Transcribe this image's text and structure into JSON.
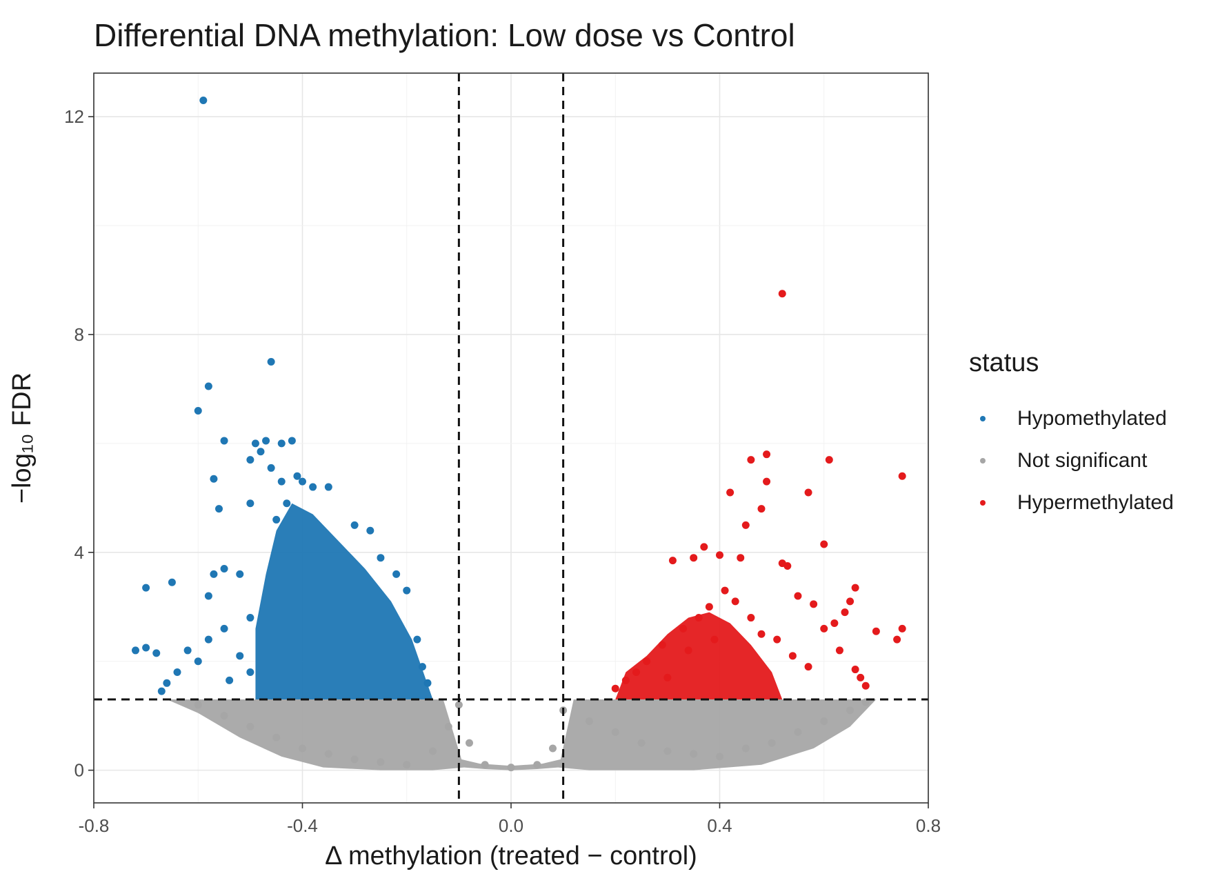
{
  "chart_data": {
    "type": "scatter",
    "title": "Differential DNA methylation: Low dose vs Control",
    "xlabel": "Δ methylation (treated − control)",
    "ylabel": "−log₁₀ FDR",
    "xlim": [
      -0.8,
      0.8
    ],
    "ylim": [
      -0.6,
      12.8
    ],
    "x_ticks": [
      -0.8,
      -0.4,
      0.0,
      0.4,
      0.8
    ],
    "x_tick_labels": [
      "-0.8",
      "-0.4",
      "0.0",
      "0.4",
      "0.8"
    ],
    "y_ticks": [
      0,
      4,
      8,
      12
    ],
    "y_tick_labels": [
      "0",
      "4",
      "8",
      "12"
    ],
    "grid": true,
    "thresholds": {
      "delta_methylation": [
        -0.1,
        0.1
      ],
      "neg_log10_fdr": 1.3
    },
    "legend": {
      "title": "status",
      "placement": "right",
      "entries": [
        {
          "label": "Hypomethylated",
          "color": "#1f77b4"
        },
        {
          "label": "Not significant",
          "color": "#a6a6a6"
        },
        {
          "label": "Hypermethylated",
          "color": "#e41a1c"
        }
      ]
    },
    "series": [
      {
        "name": "Hypomethylated",
        "color": "#1f77b4",
        "points": [
          [
            -0.59,
            12.3
          ],
          [
            -0.46,
            7.5
          ],
          [
            -0.58,
            7.05
          ],
          [
            -0.6,
            6.6
          ],
          [
            -0.55,
            6.05
          ],
          [
            -0.49,
            6.0
          ],
          [
            -0.47,
            6.05
          ],
          [
            -0.44,
            6.0
          ],
          [
            -0.42,
            6.05
          ],
          [
            -0.5,
            5.7
          ],
          [
            -0.48,
            5.85
          ],
          [
            -0.46,
            5.55
          ],
          [
            -0.57,
            5.35
          ],
          [
            -0.44,
            5.3
          ],
          [
            -0.41,
            5.4
          ],
          [
            -0.4,
            5.3
          ],
          [
            -0.38,
            5.2
          ],
          [
            -0.35,
            5.2
          ],
          [
            -0.56,
            4.8
          ],
          [
            -0.5,
            4.9
          ],
          [
            -0.45,
            4.6
          ],
          [
            -0.43,
            4.9
          ],
          [
            -0.3,
            4.5
          ],
          [
            -0.27,
            4.4
          ],
          [
            -0.55,
            3.7
          ],
          [
            -0.57,
            3.6
          ],
          [
            -0.65,
            3.45
          ],
          [
            -0.7,
            3.35
          ],
          [
            -0.58,
            3.2
          ],
          [
            -0.52,
            3.6
          ],
          [
            -0.25,
            3.9
          ],
          [
            -0.22,
            3.6
          ],
          [
            -0.2,
            3.3
          ],
          [
            -0.5,
            2.8
          ],
          [
            -0.55,
            2.6
          ],
          [
            -0.58,
            2.4
          ],
          [
            -0.62,
            2.2
          ],
          [
            -0.72,
            2.2
          ],
          [
            -0.7,
            2.25
          ],
          [
            -0.68,
            2.15
          ],
          [
            -0.6,
            2.0
          ],
          [
            -0.64,
            1.8
          ],
          [
            -0.66,
            1.6
          ],
          [
            -0.67,
            1.45
          ],
          [
            -0.52,
            2.1
          ],
          [
            -0.5,
            1.8
          ],
          [
            -0.54,
            1.65
          ],
          [
            -0.18,
            2.4
          ],
          [
            -0.17,
            1.9
          ],
          [
            -0.16,
            1.6
          ]
        ]
      },
      {
        "name": "Hypermethylated",
        "color": "#e41a1c",
        "points": [
          [
            0.52,
            8.75
          ],
          [
            0.75,
            5.4
          ],
          [
            0.61,
            5.7
          ],
          [
            0.49,
            5.8
          ],
          [
            0.46,
            5.7
          ],
          [
            0.49,
            5.3
          ],
          [
            0.42,
            5.1
          ],
          [
            0.57,
            5.1
          ],
          [
            0.48,
            4.8
          ],
          [
            0.45,
            4.5
          ],
          [
            0.6,
            4.15
          ],
          [
            0.37,
            4.1
          ],
          [
            0.35,
            3.9
          ],
          [
            0.31,
            3.85
          ],
          [
            0.4,
            3.95
          ],
          [
            0.44,
            3.9
          ],
          [
            0.52,
            3.8
          ],
          [
            0.53,
            3.75
          ],
          [
            0.55,
            3.2
          ],
          [
            0.58,
            3.05
          ],
          [
            0.66,
            3.35
          ],
          [
            0.65,
            3.1
          ],
          [
            0.64,
            2.9
          ],
          [
            0.62,
            2.7
          ],
          [
            0.6,
            2.6
          ],
          [
            0.75,
            2.6
          ],
          [
            0.7,
            2.55
          ],
          [
            0.74,
            2.4
          ],
          [
            0.46,
            2.8
          ],
          [
            0.48,
            2.5
          ],
          [
            0.51,
            2.4
          ],
          [
            0.54,
            2.1
          ],
          [
            0.57,
            1.9
          ],
          [
            0.63,
            2.2
          ],
          [
            0.66,
            1.85
          ],
          [
            0.67,
            1.7
          ],
          [
            0.68,
            1.55
          ],
          [
            0.24,
            1.8
          ],
          [
            0.22,
            1.65
          ],
          [
            0.2,
            1.5
          ],
          [
            0.26,
            2.0
          ],
          [
            0.29,
            2.3
          ],
          [
            0.33,
            2.6
          ],
          [
            0.38,
            3.0
          ],
          [
            0.41,
            3.3
          ],
          [
            0.43,
            3.1
          ],
          [
            0.36,
            2.8
          ],
          [
            0.39,
            2.4
          ],
          [
            0.34,
            2.2
          ],
          [
            0.3,
            1.7
          ]
        ]
      },
      {
        "name": "Not significant",
        "color": "#a6a6a6",
        "points": [
          [
            -0.6,
            1.2
          ],
          [
            -0.55,
            1.0
          ],
          [
            -0.5,
            0.8
          ],
          [
            -0.45,
            0.6
          ],
          [
            -0.4,
            0.4
          ],
          [
            -0.35,
            0.3
          ],
          [
            -0.3,
            0.2
          ],
          [
            -0.25,
            0.15
          ],
          [
            -0.2,
            0.1
          ],
          [
            -0.15,
            0.35
          ],
          [
            -0.12,
            0.8
          ],
          [
            -0.1,
            1.2
          ],
          [
            -0.08,
            0.5
          ],
          [
            -0.05,
            0.1
          ],
          [
            0.0,
            0.05
          ],
          [
            0.05,
            0.1
          ],
          [
            0.08,
            0.4
          ],
          [
            0.1,
            1.1
          ],
          [
            0.15,
            0.9
          ],
          [
            0.2,
            0.7
          ],
          [
            0.25,
            0.5
          ],
          [
            0.3,
            0.35
          ],
          [
            0.35,
            0.3
          ],
          [
            0.4,
            0.25
          ],
          [
            0.45,
            0.4
          ],
          [
            0.5,
            0.5
          ],
          [
            0.55,
            0.7
          ],
          [
            0.6,
            0.9
          ],
          [
            0.65,
            1.1
          ],
          [
            0.68,
            1.25
          ]
        ]
      }
    ]
  }
}
